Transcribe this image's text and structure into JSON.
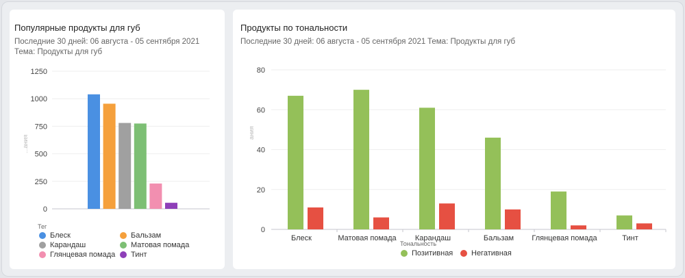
{
  "left": {
    "title": "Популярные продукты для губ",
    "period": "Последние 30 дней: 06 августа - 05 сентября 2021",
    "topic": "Тема: Продукты для губ",
    "ylabel_fragment": "...ания",
    "legend_title": "Тег",
    "legend": [
      {
        "label": "Блеск",
        "color": "#4a90e2"
      },
      {
        "label": "Бальзам",
        "color": "#f5a03c"
      },
      {
        "label": "Карандаш",
        "color": "#a0a0a0"
      },
      {
        "label": "Матовая помада",
        "color": "#7dbf74"
      },
      {
        "label": "Глянцевая помада",
        "color": "#f28fb0"
      },
      {
        "label": "Тинт",
        "color": "#8e3fb8"
      }
    ]
  },
  "right": {
    "title": "Продукты по тональности",
    "period": "Последние 30 дней: 06 августа - 05 сентября 2021",
    "topic": "Тема: Продукты для губ",
    "ylabel_fragment": "ания",
    "legend_title": "Тональность",
    "legend": [
      {
        "label": "Позитивная",
        "color": "#94c059"
      },
      {
        "label": "Негативная",
        "color": "#e65042"
      }
    ]
  },
  "chart_data": [
    {
      "type": "bar",
      "title": "Популярные продукты для губ",
      "categories": [
        "Блеск",
        "Бальзам",
        "Карандаш",
        "Матовая помада",
        "Глянцевая помада",
        "Тинт"
      ],
      "values": [
        1040,
        955,
        780,
        775,
        230,
        55
      ],
      "colors": [
        "#4a90e2",
        "#f5a03c",
        "#a0a0a0",
        "#7dbf74",
        "#f28fb0",
        "#8e3fb8"
      ],
      "yticks": [
        "0",
        "250",
        "500",
        "750",
        "1000",
        "1250"
      ],
      "ylim": [
        0,
        1250
      ],
      "grid": true,
      "legend_title": "Тег",
      "legend_position": "bottom"
    },
    {
      "type": "bar",
      "title": "Продукты по тональности",
      "categories": [
        "Блеск",
        "Матовая помада",
        "Карандаш",
        "Бальзам",
        "Глянцевая помада",
        "Тинт"
      ],
      "series": [
        {
          "name": "Позитивная",
          "values": [
            67,
            70,
            61,
            46,
            19,
            7
          ],
          "color": "#94c059"
        },
        {
          "name": "Негативная",
          "values": [
            11,
            6,
            13,
            10,
            2,
            3
          ],
          "color": "#e65042"
        }
      ],
      "yticks": [
        "0",
        "20",
        "40",
        "60",
        "80"
      ],
      "ylim": [
        0,
        80
      ],
      "grid": true,
      "legend_title": "Тональность",
      "legend_position": "bottom"
    }
  ]
}
